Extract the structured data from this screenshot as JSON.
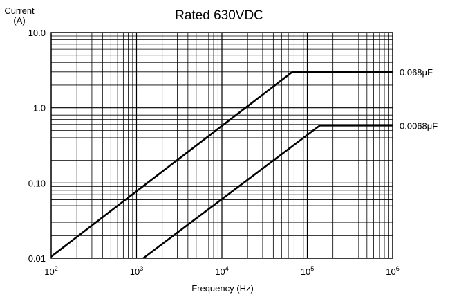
{
  "chart_data": {
    "type": "line",
    "title": "Rated  630VDC",
    "ylabel_line1": "Current",
    "ylabel_line2": "(A)",
    "xlabel": "Frequency (Hz)",
    "x_scale": "log",
    "y_scale": "log",
    "xlim": [
      100,
      1000000
    ],
    "ylim": [
      0.01,
      10
    ],
    "grid": true,
    "x_ticks": [
      {
        "base": "10",
        "exp": "2",
        "value": 100
      },
      {
        "base": "10",
        "exp": "3",
        "value": 1000
      },
      {
        "base": "10",
        "exp": "4",
        "value": 10000
      },
      {
        "base": "10",
        "exp": "5",
        "value": 100000
      },
      {
        "base": "10",
        "exp": "6",
        "value": 1000000
      }
    ],
    "y_ticks": [
      {
        "label": "0.01",
        "value": 0.01
      },
      {
        "label": "0.10",
        "value": 0.1
      },
      {
        "label": "1.0",
        "value": 1
      },
      {
        "label": "10.0",
        "value": 10
      }
    ],
    "series": [
      {
        "name": "0.068μF",
        "x": [
          100,
          67000,
          1000000
        ],
        "y": [
          0.0105,
          3.0,
          3.0
        ]
      },
      {
        "name": "0.0068μF",
        "x": [
          1200,
          140000,
          1000000
        ],
        "y": [
          0.01,
          0.58,
          0.58
        ]
      }
    ]
  }
}
